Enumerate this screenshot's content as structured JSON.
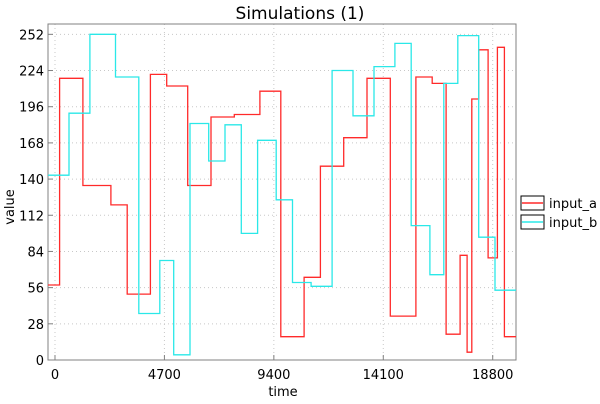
{
  "chart_data": {
    "type": "line",
    "step": true,
    "title": "Simulations (1)",
    "xlabel": "time",
    "ylabel": "value",
    "xlim": [
      -300,
      19800
    ],
    "ylim": [
      0,
      260
    ],
    "xticks": [
      0,
      4700,
      9400,
      14100,
      18800
    ],
    "yticks": [
      0,
      28,
      56,
      84,
      112,
      140,
      168,
      196,
      224,
      252
    ],
    "grid": true,
    "legend": "right",
    "series": [
      {
        "name": "input_a",
        "color": "#ff2a2a",
        "points": [
          [
            -300,
            58
          ],
          [
            200,
            58
          ],
          [
            200,
            218
          ],
          [
            1200,
            218
          ],
          [
            1200,
            135
          ],
          [
            2400,
            135
          ],
          [
            2400,
            120
          ],
          [
            3100,
            120
          ],
          [
            3100,
            51
          ],
          [
            4100,
            51
          ],
          [
            4100,
            221
          ],
          [
            4800,
            221
          ],
          [
            4800,
            212
          ],
          [
            5700,
            212
          ],
          [
            5700,
            135
          ],
          [
            6700,
            135
          ],
          [
            6700,
            188
          ],
          [
            7700,
            188
          ],
          [
            7700,
            190
          ],
          [
            8800,
            190
          ],
          [
            8800,
            208
          ],
          [
            9700,
            208
          ],
          [
            9700,
            18
          ],
          [
            10700,
            18
          ],
          [
            10700,
            64
          ],
          [
            11400,
            64
          ],
          [
            11400,
            150
          ],
          [
            12400,
            150
          ],
          [
            12400,
            172
          ],
          [
            13400,
            172
          ],
          [
            13400,
            218
          ],
          [
            14400,
            218
          ],
          [
            14400,
            34
          ],
          [
            15500,
            34
          ],
          [
            15500,
            219
          ],
          [
            16200,
            219
          ],
          [
            16200,
            214
          ],
          [
            16800,
            214
          ],
          [
            16800,
            20
          ],
          [
            17400,
            20
          ],
          [
            17400,
            81
          ],
          [
            17700,
            81
          ],
          [
            17700,
            6
          ],
          [
            17900,
            6
          ],
          [
            17900,
            202
          ],
          [
            18200,
            202
          ],
          [
            18200,
            240
          ],
          [
            18600,
            240
          ],
          [
            18600,
            79
          ],
          [
            19000,
            79
          ],
          [
            19000,
            242
          ],
          [
            19300,
            242
          ],
          [
            19300,
            18
          ],
          [
            19800,
            18
          ]
        ]
      },
      {
        "name": "input_b",
        "color": "#2ae8e8",
        "points": [
          [
            -300,
            143
          ],
          [
            600,
            143
          ],
          [
            600,
            191
          ],
          [
            1500,
            191
          ],
          [
            1500,
            252
          ],
          [
            2600,
            252
          ],
          [
            2600,
            219
          ],
          [
            3600,
            219
          ],
          [
            3600,
            36
          ],
          [
            4500,
            36
          ],
          [
            4500,
            77
          ],
          [
            5100,
            77
          ],
          [
            5100,
            4
          ],
          [
            5800,
            4
          ],
          [
            5800,
            183
          ],
          [
            6600,
            183
          ],
          [
            6600,
            154
          ],
          [
            7300,
            154
          ],
          [
            7300,
            182
          ],
          [
            8000,
            182
          ],
          [
            8000,
            98
          ],
          [
            8700,
            98
          ],
          [
            8700,
            170
          ],
          [
            9500,
            170
          ],
          [
            9500,
            124
          ],
          [
            10200,
            124
          ],
          [
            10200,
            60
          ],
          [
            11000,
            60
          ],
          [
            11000,
            57
          ],
          [
            11900,
            57
          ],
          [
            11900,
            224
          ],
          [
            12800,
            224
          ],
          [
            12800,
            189
          ],
          [
            13700,
            189
          ],
          [
            13700,
            227
          ],
          [
            14600,
            227
          ],
          [
            14600,
            245
          ],
          [
            15300,
            245
          ],
          [
            15300,
            104
          ],
          [
            16100,
            104
          ],
          [
            16100,
            66
          ],
          [
            16700,
            66
          ],
          [
            16700,
            214
          ],
          [
            17300,
            214
          ],
          [
            17300,
            251
          ],
          [
            18200,
            251
          ],
          [
            18200,
            95
          ],
          [
            18900,
            95
          ],
          [
            18900,
            54
          ],
          [
            19800,
            54
          ]
        ]
      }
    ]
  }
}
